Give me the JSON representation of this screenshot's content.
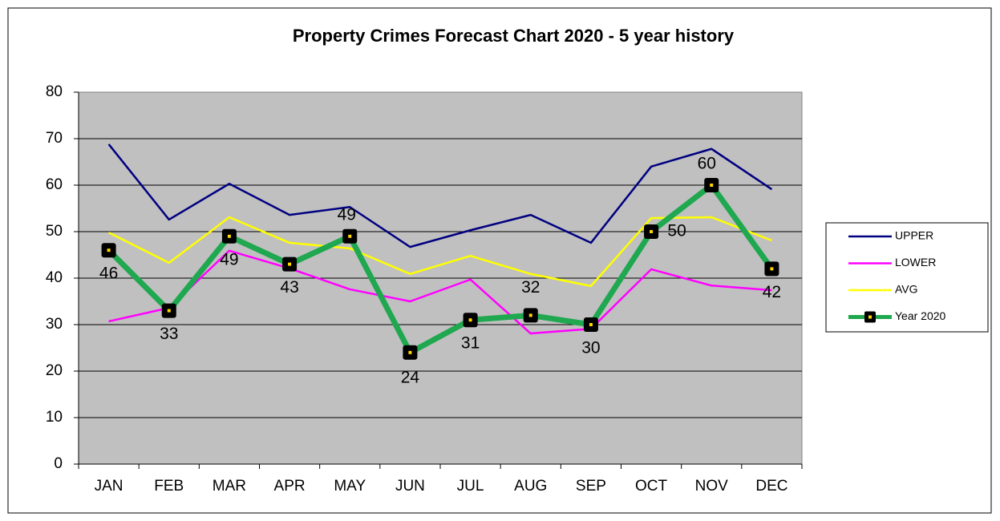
{
  "chart_data": {
    "type": "line",
    "title": "Property Crimes Forecast Chart 2020 - 5 year history",
    "categories": [
      "JAN",
      "FEB",
      "MAR",
      "APR",
      "MAY",
      "JUN",
      "JUL",
      "AUG",
      "SEP",
      "OCT",
      "NOV",
      "DEC"
    ],
    "series": [
      {
        "name": "UPPER",
        "color": "#000080",
        "values": [
          68.8,
          52.6,
          60.3,
          53.6,
          55.3,
          46.7,
          50.3,
          53.6,
          47.6,
          64.0,
          67.8,
          59.1
        ]
      },
      {
        "name": "LOWER",
        "color": "#ff00ff",
        "values": [
          30.7,
          33.6,
          45.9,
          42.1,
          37.6,
          35.0,
          39.7,
          28.1,
          29.1,
          41.9,
          38.4,
          37.4
        ]
      },
      {
        "name": "AVG",
        "color": "#ffff00",
        "values": [
          49.8,
          43.3,
          53.1,
          47.6,
          46.4,
          40.9,
          44.8,
          40.9,
          38.3,
          52.9,
          53.1,
          48.1
        ]
      },
      {
        "name": "Year 2020",
        "color": "#1fa84f",
        "values": [
          46,
          33,
          49,
          43,
          49,
          24,
          31,
          32,
          30,
          50,
          60,
          42
        ]
      }
    ],
    "ylim": [
      0,
      80
    ],
    "yticks": [
      0,
      10,
      20,
      30,
      40,
      50,
      60,
      70,
      80
    ],
    "grid": true,
    "legend": "right"
  }
}
